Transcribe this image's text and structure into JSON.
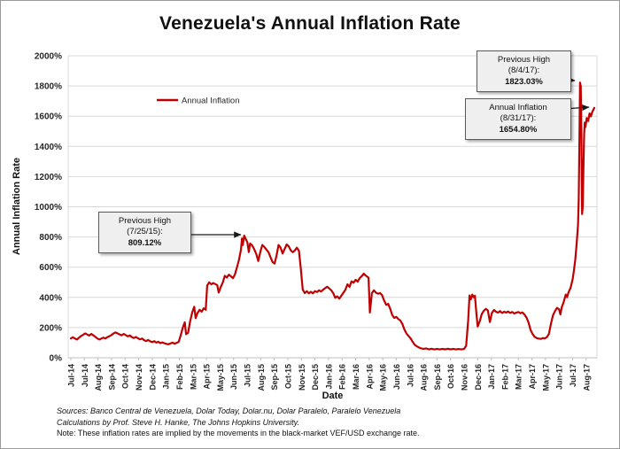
{
  "chart": {
    "title": "Venezuela's Annual Inflation Rate",
    "y_axis_title": "Annual Inflation Rate",
    "x_axis_title": "Date",
    "legend_label": "Annual Inflation",
    "annotations": [
      {
        "line1": "Previous High",
        "line2": "(8/4/17):",
        "value": "1823.03%"
      },
      {
        "line1": "Annual Inflation",
        "line2": "(8/31/17):",
        "value": "1654.80%"
      },
      {
        "line1": "Previous High",
        "line2": "(7/25/15):",
        "value": "809.12%"
      }
    ],
    "notes": {
      "sources": "Sources: Banco Central de Venezuela, Dolar Today, Dolar.nu, Dolar Paralelo, Paralelo Venezuela",
      "calculations": "Calculations by Prof. Steve H. Hanke, The Johns Hopkins University.",
      "note": "Note: These inflation rates are implied by the movements in the black-market VEF/USD exchange rate."
    }
  },
  "chart_data": {
    "type": "line",
    "title": "Venezuela's Annual Inflation Rate",
    "xlabel": "Date",
    "ylabel": "Annual Inflation Rate",
    "ylim": [
      0,
      2000
    ],
    "ytick_interval": 200,
    "ytick_labels": [
      "0%",
      "200%",
      "400%",
      "600%",
      "800%",
      "1000%",
      "1200%",
      "1400%",
      "1600%",
      "1800%",
      "2000%"
    ],
    "xtick_labels": [
      "Jul-14",
      "Jul-14",
      "Aug-14",
      "Sep-14",
      "Oct-14",
      "Nov-14",
      "Dec-14",
      "Jan-15",
      "Feb-15",
      "Mar-15",
      "Apr-15",
      "May-15",
      "Jun-15",
      "Jul-15",
      "Aug-15",
      "Sep-15",
      "Oct-15",
      "Nov-15",
      "Dec-15",
      "Jan-16",
      "Feb-16",
      "Mar-16",
      "Apr-16",
      "May-16",
      "Jun-16",
      "Jul-16",
      "Aug-16",
      "Sep-16",
      "Oct-16",
      "Nov-16",
      "Dec-16",
      "Jan-17",
      "Feb-17",
      "Mar-17",
      "Apr-17",
      "May-17",
      "Jun-17",
      "Jul-17",
      "Aug-17"
    ],
    "grid": "horizontal",
    "legend_position": "inside-upper-left",
    "colors": {
      "line": "#C00000",
      "grid": "#d9d9d9",
      "axis": "#bfbfbf",
      "arrow": "#1a1a1a"
    },
    "key_points": [
      {
        "date": "7/25/15",
        "value": 809.12,
        "label": "Previous High"
      },
      {
        "date": "8/4/17",
        "value": 1823.03,
        "label": "Previous High"
      },
      {
        "date": "8/31/17",
        "value": 1654.8,
        "label": "Annual Inflation"
      }
    ],
    "series": [
      {
        "name": "Annual Inflation",
        "color": "#C00000",
        "points": [
          [
            0,
            128
          ],
          [
            0.15,
            136
          ],
          [
            0.3,
            127
          ],
          [
            0.45,
            121
          ],
          [
            0.6,
            133
          ],
          [
            0.75,
            144
          ],
          [
            0.9,
            152
          ],
          [
            1.05,
            161
          ],
          [
            1.2,
            154
          ],
          [
            1.35,
            147
          ],
          [
            1.5,
            158
          ],
          [
            1.65,
            149
          ],
          [
            1.8,
            139
          ],
          [
            1.95,
            128
          ],
          [
            2.1,
            121
          ],
          [
            2.25,
            127
          ],
          [
            2.4,
            134
          ],
          [
            2.55,
            128
          ],
          [
            2.7,
            137
          ],
          [
            2.85,
            143
          ],
          [
            3,
            151
          ],
          [
            3.15,
            161
          ],
          [
            3.3,
            168
          ],
          [
            3.45,
            161
          ],
          [
            3.6,
            154
          ],
          [
            3.75,
            149
          ],
          [
            3.9,
            158
          ],
          [
            4.05,
            150
          ],
          [
            4.2,
            142
          ],
          [
            4.35,
            148
          ],
          [
            4.5,
            137
          ],
          [
            4.65,
            131
          ],
          [
            4.8,
            138
          ],
          [
            4.95,
            129
          ],
          [
            5.1,
            122
          ],
          [
            5.25,
            128
          ],
          [
            5.4,
            117
          ],
          [
            5.55,
            111
          ],
          [
            5.7,
            118
          ],
          [
            5.85,
            109
          ],
          [
            6,
            104
          ],
          [
            6.15,
            110
          ],
          [
            6.3,
            100
          ],
          [
            6.45,
            106
          ],
          [
            6.6,
            97
          ],
          [
            6.75,
            102
          ],
          [
            6.9,
            96
          ],
          [
            7.05,
            92
          ],
          [
            7.2,
            89
          ],
          [
            7.35,
            95
          ],
          [
            7.5,
            100
          ],
          [
            7.65,
            93
          ],
          [
            7.8,
            99
          ],
          [
            7.95,
            105
          ],
          [
            8.1,
            148
          ],
          [
            8.25,
            198
          ],
          [
            8.4,
            235
          ],
          [
            8.5,
            156
          ],
          [
            8.65,
            166
          ],
          [
            8.8,
            242
          ],
          [
            8.95,
            300
          ],
          [
            9.1,
            338
          ],
          [
            9.2,
            262
          ],
          [
            9.35,
            298
          ],
          [
            9.5,
            318
          ],
          [
            9.65,
            305
          ],
          [
            9.8,
            328
          ],
          [
            9.95,
            318
          ],
          [
            10.05,
            478
          ],
          [
            10.2,
            500
          ],
          [
            10.35,
            487
          ],
          [
            10.5,
            495
          ],
          [
            10.65,
            488
          ],
          [
            10.8,
            481
          ],
          [
            10.9,
            432
          ],
          [
            11.05,
            468
          ],
          [
            11.2,
            498
          ],
          [
            11.35,
            543
          ],
          [
            11.5,
            531
          ],
          [
            11.65,
            551
          ],
          [
            11.8,
            539
          ],
          [
            11.95,
            527
          ],
          [
            12.1,
            553
          ],
          [
            12.25,
            598
          ],
          [
            12.4,
            648
          ],
          [
            12.55,
            718
          ],
          [
            12.62,
            790
          ],
          [
            12.68,
            746
          ],
          [
            12.78,
            809
          ],
          [
            12.9,
            786
          ],
          [
            13.02,
            764
          ],
          [
            13.12,
            700
          ],
          [
            13.22,
            757
          ],
          [
            13.37,
            744
          ],
          [
            13.52,
            719
          ],
          [
            13.67,
            688
          ],
          [
            13.82,
            641
          ],
          [
            13.97,
            701
          ],
          [
            14.12,
            747
          ],
          [
            14.27,
            734
          ],
          [
            14.42,
            717
          ],
          [
            14.57,
            699
          ],
          [
            14.72,
            667
          ],
          [
            14.87,
            634
          ],
          [
            15.02,
            624
          ],
          [
            15.17,
            679
          ],
          [
            15.32,
            747
          ],
          [
            15.47,
            729
          ],
          [
            15.62,
            691
          ],
          [
            15.77,
            721
          ],
          [
            15.92,
            751
          ],
          [
            16.07,
            737
          ],
          [
            16.22,
            711
          ],
          [
            16.37,
            699
          ],
          [
            16.52,
            711
          ],
          [
            16.67,
            729
          ],
          [
            16.82,
            709
          ],
          [
            16.95,
            598
          ],
          [
            17.1,
            451
          ],
          [
            17.25,
            429
          ],
          [
            17.4,
            441
          ],
          [
            17.55,
            427
          ],
          [
            17.7,
            437
          ],
          [
            17.85,
            427
          ],
          [
            18,
            441
          ],
          [
            18.15,
            435
          ],
          [
            18.3,
            447
          ],
          [
            18.45,
            439
          ],
          [
            18.6,
            451
          ],
          [
            18.75,
            461
          ],
          [
            18.9,
            471
          ],
          [
            19.05,
            459
          ],
          [
            19.2,
            447
          ],
          [
            19.35,
            429
          ],
          [
            19.5,
            397
          ],
          [
            19.65,
            407
          ],
          [
            19.8,
            391
          ],
          [
            19.95,
            411
          ],
          [
            20.1,
            431
          ],
          [
            20.25,
            451
          ],
          [
            20.4,
            487
          ],
          [
            20.55,
            469
          ],
          [
            20.7,
            507
          ],
          [
            20.85,
            497
          ],
          [
            21,
            517
          ],
          [
            21.15,
            504
          ],
          [
            21.3,
            527
          ],
          [
            21.45,
            541
          ],
          [
            21.6,
            557
          ],
          [
            21.75,
            544
          ],
          [
            21.85,
            537
          ],
          [
            21.95,
            531
          ],
          [
            22.05,
            300
          ],
          [
            22.2,
            429
          ],
          [
            22.35,
            447
          ],
          [
            22.5,
            431
          ],
          [
            22.65,
            424
          ],
          [
            22.8,
            429
          ],
          [
            22.95,
            414
          ],
          [
            23.1,
            379
          ],
          [
            23.25,
            351
          ],
          [
            23.4,
            357
          ],
          [
            23.55,
            324
          ],
          [
            23.7,
            284
          ],
          [
            23.85,
            264
          ],
          [
            24,
            271
          ],
          [
            24.15,
            257
          ],
          [
            24.3,
            247
          ],
          [
            24.45,
            224
          ],
          [
            24.6,
            187
          ],
          [
            24.75,
            161
          ],
          [
            24.9,
            144
          ],
          [
            25.05,
            129
          ],
          [
            25.2,
            107
          ],
          [
            25.35,
            87
          ],
          [
            25.5,
            77
          ],
          [
            25.65,
            69
          ],
          [
            25.8,
            63
          ],
          [
            26,
            59
          ],
          [
            26.2,
            62
          ],
          [
            26.4,
            56
          ],
          [
            26.6,
            60
          ],
          [
            26.8,
            55
          ],
          [
            27,
            59
          ],
          [
            27.2,
            55
          ],
          [
            27.4,
            59
          ],
          [
            27.6,
            56
          ],
          [
            27.8,
            60
          ],
          [
            28,
            56
          ],
          [
            28.2,
            59
          ],
          [
            28.4,
            55
          ],
          [
            28.6,
            58
          ],
          [
            28.8,
            55
          ],
          [
            29,
            59
          ],
          [
            29.15,
            79
          ],
          [
            29.3,
            248
          ],
          [
            29.4,
            413
          ],
          [
            29.5,
            387
          ],
          [
            29.6,
            419
          ],
          [
            29.7,
            401
          ],
          [
            29.8,
            411
          ],
          [
            29.9,
            298
          ],
          [
            30,
            207
          ],
          [
            30.15,
            241
          ],
          [
            30.3,
            289
          ],
          [
            30.45,
            311
          ],
          [
            30.6,
            324
          ],
          [
            30.75,
            314
          ],
          [
            30.9,
            237
          ],
          [
            31.05,
            297
          ],
          [
            31.2,
            317
          ],
          [
            31.35,
            305
          ],
          [
            31.5,
            299
          ],
          [
            31.65,
            309
          ],
          [
            31.8,
            297
          ],
          [
            31.95,
            305
          ],
          [
            32.1,
            299
          ],
          [
            32.25,
            307
          ],
          [
            32.4,
            297
          ],
          [
            32.55,
            303
          ],
          [
            32.7,
            293
          ],
          [
            32.85,
            299
          ],
          [
            33,
            303
          ],
          [
            33.15,
            295
          ],
          [
            33.3,
            301
          ],
          [
            33.45,
            287
          ],
          [
            33.6,
            267
          ],
          [
            33.75,
            234
          ],
          [
            33.9,
            185
          ],
          [
            34.05,
            157
          ],
          [
            34.2,
            139
          ],
          [
            34.35,
            131
          ],
          [
            34.5,
            127
          ],
          [
            34.65,
            125
          ],
          [
            34.8,
            131
          ],
          [
            34.95,
            128
          ],
          [
            35.1,
            137
          ],
          [
            35.25,
            157
          ],
          [
            35.4,
            224
          ],
          [
            35.55,
            281
          ],
          [
            35.7,
            309
          ],
          [
            35.85,
            331
          ],
          [
            36,
            321
          ],
          [
            36.1,
            287
          ],
          [
            36.2,
            334
          ],
          [
            36.35,
            371
          ],
          [
            36.5,
            419
          ],
          [
            36.6,
            401
          ],
          [
            36.7,
            434
          ],
          [
            36.85,
            464
          ],
          [
            37,
            519
          ],
          [
            37.1,
            579
          ],
          [
            37.2,
            649
          ],
          [
            37.3,
            759
          ],
          [
            37.4,
            879
          ],
          [
            37.45,
            1048
          ],
          [
            37.5,
            1400
          ],
          [
            37.55,
            1823
          ],
          [
            37.6,
            1798
          ],
          [
            37.65,
            1500
          ],
          [
            37.7,
            952
          ],
          [
            37.75,
            1002
          ],
          [
            37.8,
            1248
          ],
          [
            37.85,
            1478
          ],
          [
            37.9,
            1558
          ],
          [
            37.95,
            1528
          ],
          [
            38.05,
            1588
          ],
          [
            38.15,
            1568
          ],
          [
            38.25,
            1618
          ],
          [
            38.35,
            1598
          ],
          [
            38.45,
            1628
          ],
          [
            38.6,
            1655
          ]
        ]
      }
    ]
  }
}
